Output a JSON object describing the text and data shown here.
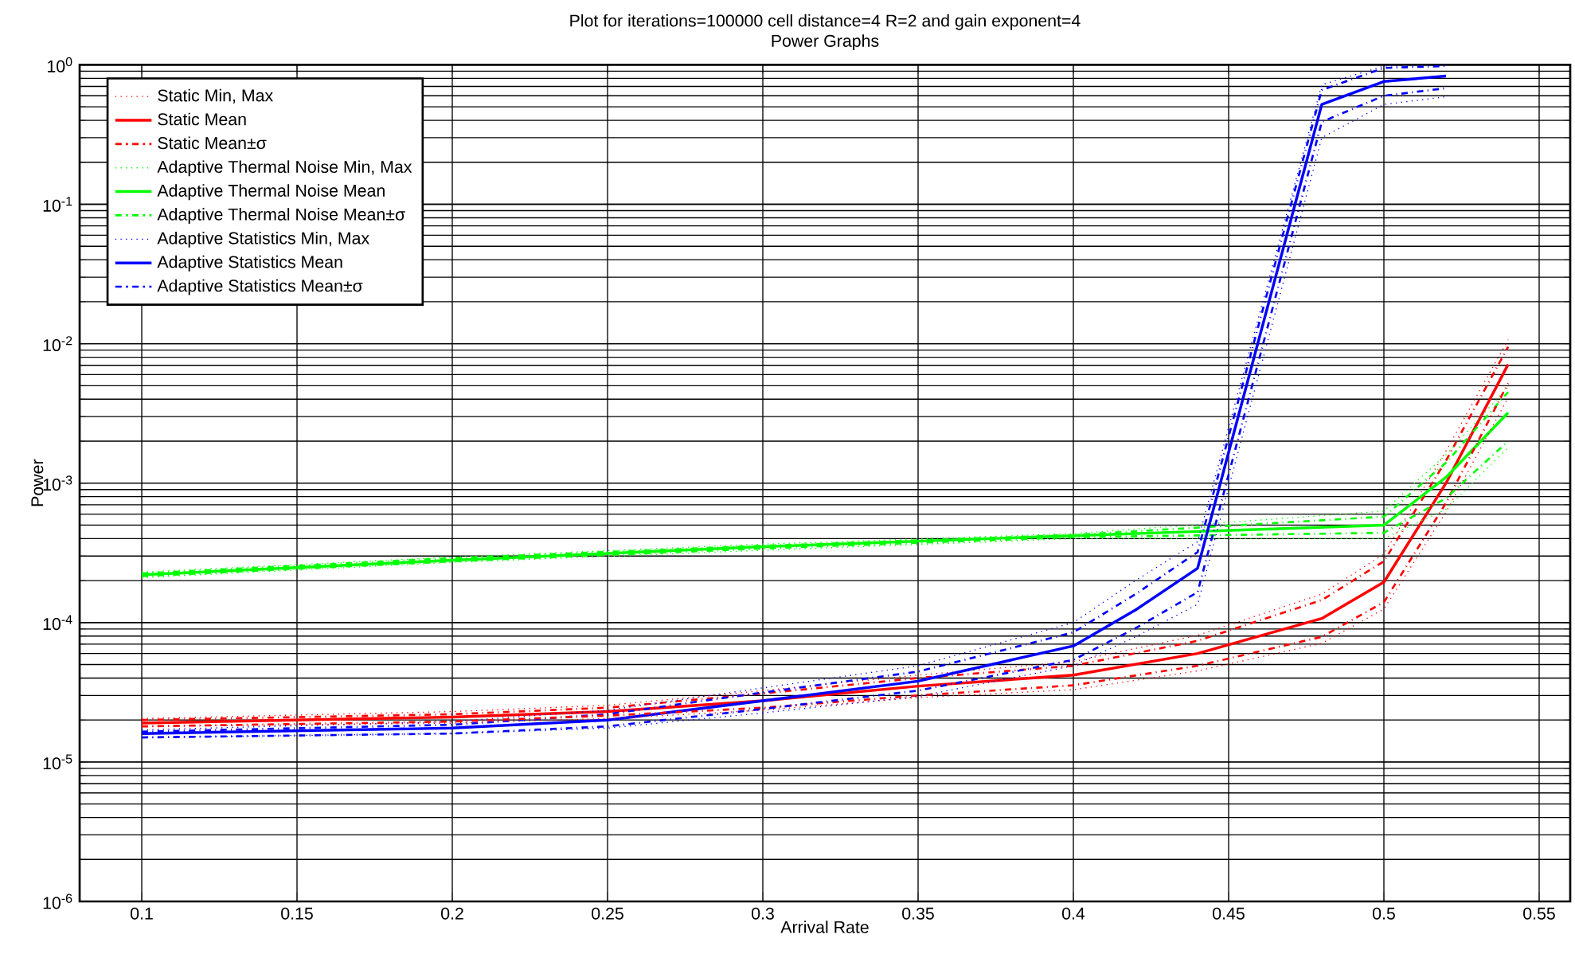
{
  "chart_data": {
    "type": "line",
    "title": "Plot for iterations=100000 cell distance=4 R=2 and gain exponent=4",
    "subtitle": "Power Graphs",
    "xlabel": "Arrival Rate",
    "ylabel": "Power",
    "log": "y",
    "grid": true,
    "legend": "top left",
    "xlim": [
      0.08,
      0.56
    ],
    "xticks": [
      0.1,
      0.15,
      0.2,
      0.25,
      0.3,
      0.35,
      0.4,
      0.45,
      0.5,
      0.55
    ],
    "ylim": [
      1e-06,
      1
    ],
    "yticks": [
      {
        "value": 1e-06,
        "label": "10$^{-6}$"
      },
      {
        "value": 1e-05,
        "label": "10$^{-5}$"
      },
      {
        "value": 0.0001,
        "label": "10$^{-4}$"
      },
      {
        "value": 0.001,
        "label": "10$^{-3}$"
      },
      {
        "value": 0.01,
        "label": "10$^{-2}$"
      },
      {
        "value": 0.1,
        "label": "10$^{-1}$"
      },
      {
        "value": 1,
        "label": "10$^{0}$"
      }
    ],
    "series": [
      {
        "name": "Static Min, Max",
        "color": "#ff0000",
        "line_style": "dotted",
        "x": [
          0.1,
          0.2,
          0.25,
          0.3,
          0.35,
          0.4,
          0.44,
          0.48,
          0.5,
          0.52,
          0.54
        ],
        "values": [
          2.05e-05,
          2.3e-05,
          2.55e-05,
          3.25e-05,
          4.2e-05,
          5.25e-05,
          8.1e-05,
          0.00016,
          0.00031,
          0.0017,
          0.0107
        ]
      },
      {
        "name": "Static Mean",
        "color": "#ff0000",
        "line_style": "solid",
        "x": [
          0.1,
          0.2,
          0.25,
          0.3,
          0.35,
          0.4,
          0.44,
          0.48,
          0.5,
          0.52,
          0.54
        ],
        "values": [
          1.9e-05,
          2.1e-05,
          2.3e-05,
          2.75e-05,
          3.5e-05,
          4.2e-05,
          6e-05,
          0.000107,
          0.000195,
          0.001,
          0.0071
        ]
      },
      {
        "name": "Static Mean±σ",
        "color": "#ff0000",
        "line_style": "dashed",
        "x": [
          0.1,
          0.2,
          0.25,
          0.3,
          0.35,
          0.4,
          0.44,
          0.48,
          0.5,
          0.52,
          0.54
        ],
        "values": [
          2e-05,
          2.2e-05,
          2.45e-05,
          3.1e-05,
          4e-05,
          4.9e-05,
          7.4e-05,
          0.000145,
          0.000275,
          0.00145,
          0.0095
        ]
      },
      {
        "name": "Adaptive Thermal Noise Min, Max",
        "color": "#00ff00",
        "line_style": "dotted",
        "x": [
          0.1,
          0.2,
          0.3,
          0.4,
          0.5,
          0.52,
          0.54
        ],
        "values": [
          0.00023,
          0.000295,
          0.000365,
          0.000435,
          0.00063,
          0.0016,
          0.0049
        ]
      },
      {
        "name": "Adaptive Thermal Noise Mean",
        "color": "#00ff00",
        "line_style": "solid",
        "x": [
          0.1,
          0.2,
          0.3,
          0.4,
          0.5,
          0.52,
          0.54
        ],
        "values": [
          0.00022,
          0.00028,
          0.00035,
          0.00042,
          0.0005,
          0.0011,
          0.0032
        ]
      },
      {
        "name": "Adaptive Thermal Noise Mean±σ",
        "color": "#00ff00",
        "line_style": "dashed",
        "x": [
          0.1,
          0.2,
          0.3,
          0.4,
          0.5,
          0.52,
          0.54
        ],
        "values": [
          0.000225,
          0.00029,
          0.000355,
          0.000425,
          0.000575,
          0.0014,
          0.0045
        ]
      },
      {
        "name": "Adaptive Statistics Min, Max",
        "color": "#0000ff",
        "line_style": "dotted",
        "x": [
          0.1,
          0.2,
          0.25,
          0.3,
          0.35,
          0.4,
          0.42,
          0.44,
          0.48,
          0.5,
          0.52
        ],
        "values": [
          1.7e-05,
          1.95e-05,
          2.35e-05,
          3.4e-05,
          4.9e-05,
          0.0001,
          0.0002,
          0.00038,
          0.72,
          0.98,
          0.99
        ]
      },
      {
        "name": "Adaptive Statistics Mean",
        "color": "#0000ff",
        "line_style": "solid",
        "x": [
          0.1,
          0.2,
          0.25,
          0.3,
          0.35,
          0.4,
          0.42,
          0.44,
          0.48,
          0.5,
          0.52
        ],
        "values": [
          1.6e-05,
          1.75e-05,
          2e-05,
          2.75e-05,
          3.8e-05,
          6.8e-05,
          0.000123,
          0.000245,
          0.52,
          0.76,
          0.83
        ]
      },
      {
        "name": "Adaptive Statistics Mean±σ",
        "color": "#0000ff",
        "line_style": "dashed",
        "x": [
          0.1,
          0.2,
          0.25,
          0.3,
          0.35,
          0.4,
          0.42,
          0.44,
          0.48,
          0.5,
          0.52
        ],
        "values": [
          1.65e-05,
          1.85e-05,
          2.2e-05,
          3.15e-05,
          4.45e-05,
          8.5e-05,
          0.00016,
          0.00032,
          0.66,
          0.95,
          0.98
        ]
      },
      {
        "color": "#ff0000",
        "line_style": "dotted",
        "x": [
          0.1,
          0.2,
          0.25,
          0.3,
          0.35,
          0.4,
          0.44,
          0.48,
          0.5,
          0.52,
          0.54
        ],
        "values": [
          1.8e-05,
          1.9e-05,
          2.05e-05,
          2.35e-05,
          2.9e-05,
          3.3e-05,
          4.5e-05,
          7.1e-05,
          0.000125,
          0.00062,
          0.0041
        ]
      },
      {
        "color": "#ff0000",
        "line_style": "dashed",
        "x": [
          0.1,
          0.2,
          0.25,
          0.3,
          0.35,
          0.4,
          0.44,
          0.48,
          0.5,
          0.52,
          0.54
        ],
        "values": [
          1.8e-05,
          1.95e-05,
          2.15e-05,
          2.45e-05,
          3e-05,
          3.55e-05,
          4.9e-05,
          7.9e-05,
          0.00014,
          0.00072,
          0.0052
        ]
      },
      {
        "color": "#00ff00",
        "line_style": "dotted",
        "x": [
          0.1,
          0.2,
          0.3,
          0.4,
          0.5,
          0.52,
          0.54
        ],
        "values": [
          0.00021,
          0.00027,
          0.00033,
          0.0004,
          0.0004,
          0.00065,
          0.0018
        ]
      },
      {
        "color": "#00ff00",
        "line_style": "dashed",
        "x": [
          0.1,
          0.2,
          0.3,
          0.4,
          0.5,
          0.52,
          0.54
        ],
        "values": [
          0.000215,
          0.000275,
          0.00034,
          0.00041,
          0.00044,
          0.00078,
          0.002
        ]
      },
      {
        "color": "#0000ff",
        "line_style": "dotted",
        "x": [
          0.1,
          0.2,
          0.25,
          0.3,
          0.35,
          0.4,
          0.42,
          0.44,
          0.48,
          0.5,
          0.52
        ],
        "values": [
          1.5e-05,
          1.6e-05,
          1.75e-05,
          2.25e-05,
          2.95e-05,
          4.9e-05,
          7.9e-05,
          0.000135,
          0.3,
          0.52,
          0.59
        ]
      },
      {
        "color": "#0000ff",
        "line_style": "dashed",
        "x": [
          0.1,
          0.2,
          0.25,
          0.3,
          0.35,
          0.4,
          0.42,
          0.44,
          0.48,
          0.5,
          0.52
        ],
        "values": [
          1.5e-05,
          1.6e-05,
          1.8e-05,
          2.4e-05,
          3.25e-05,
          5.4e-05,
          9.1e-05,
          0.000165,
          0.39,
          0.6,
          0.68
        ]
      }
    ]
  }
}
